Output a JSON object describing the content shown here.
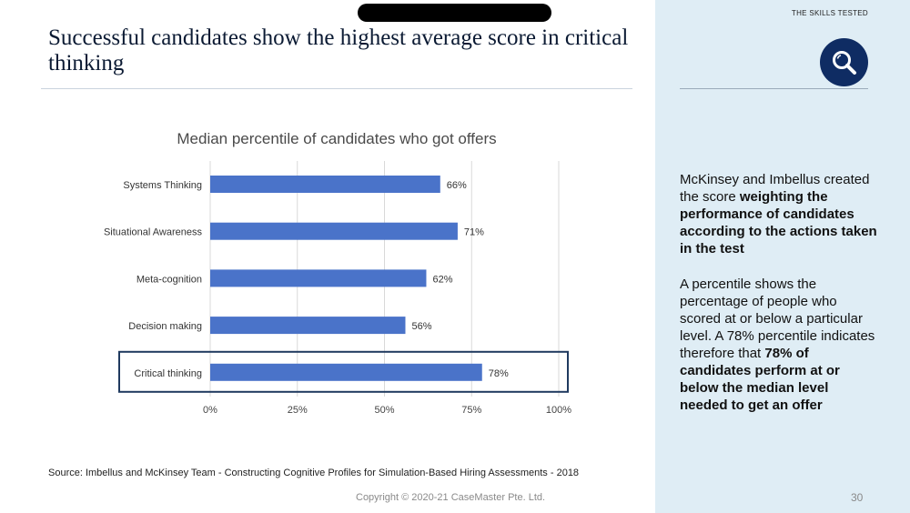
{
  "slide": {
    "title": "Successful candidates show the highest average score in critical thinking",
    "source": "Source: Imbellus and McKinsey Team - Constructing Cognitive Profiles for Simulation-Based Hiring Assessments - 2018",
    "copyright": "Copyright © 2020-21 CaseMaster Pte. Ltd.",
    "page_number": "30"
  },
  "side_panel": {
    "label": "THE SKILLS TESTED",
    "icon": "search-icon",
    "para1_pre": "McKinsey and Imbellus created the score ",
    "para1_bold": "weighting the performance of candidates according to the actions taken in the test",
    "para2_pre": "A percentile shows the percentage of people who scored at or below a particular level. A 78% percentile indicates therefore that ",
    "para2_bold": "78% of candidates perform at or below the median level needed to get an offer"
  },
  "chart_data": {
    "type": "bar",
    "orientation": "horizontal",
    "title": "Median percentile of candidates who got offers",
    "categories": [
      "Systems Thinking",
      "Situational Awareness",
      "Meta-cognition",
      "Decision making",
      "Critical thinking"
    ],
    "values": [
      66,
      71,
      62,
      56,
      78
    ],
    "data_labels": [
      "66%",
      "71%",
      "62%",
      "56%",
      "78%"
    ],
    "xticks": [
      "0%",
      "25%",
      "50%",
      "75%",
      "100%"
    ],
    "xlim": [
      0,
      100
    ],
    "grid": true,
    "highlighted_category": "Critical thinking",
    "colors": {
      "bar": "#4a73c9",
      "highlight_box": "#1f3a5f",
      "grid": "#d9d9d9"
    }
  }
}
